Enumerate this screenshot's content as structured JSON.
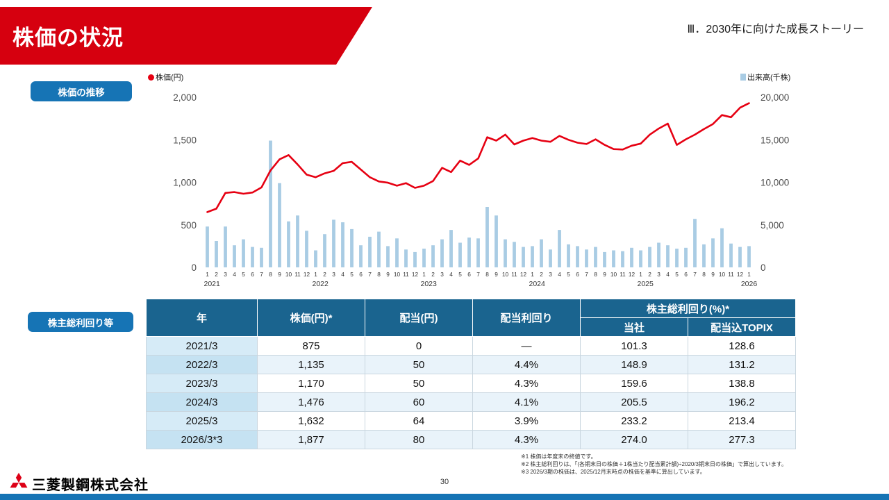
{
  "header": {
    "title": "株価の状況",
    "section": "Ⅲ．2030年に向けた成長ストーリー"
  },
  "chart_section": {
    "label": "株価の推移",
    "legend_price": "株価(円)",
    "legend_volume": "出来高(千株)"
  },
  "chart_data": {
    "type": "line+bar",
    "title": "株価の推移",
    "x_labels": [
      "1",
      "2",
      "3",
      "4",
      "5",
      "6",
      "7",
      "8",
      "9",
      "10",
      "11",
      "12",
      "1",
      "2",
      "3",
      "4",
      "5",
      "6",
      "7",
      "8",
      "9",
      "10",
      "11",
      "12",
      "1",
      "2",
      "3",
      "4",
      "5",
      "6",
      "7",
      "8",
      "9",
      "10",
      "11",
      "12",
      "1",
      "2",
      "3",
      "4",
      "5",
      "6",
      "7",
      "8",
      "9",
      "10",
      "11",
      "12",
      "1",
      "2",
      "3",
      "4",
      "5",
      "6",
      "7",
      "8",
      "9",
      "10",
      "11",
      "12",
      "1"
    ],
    "year_labels": [
      {
        "label": "2021",
        "index": 0
      },
      {
        "label": "2022",
        "index": 12
      },
      {
        "label": "2023",
        "index": 24
      },
      {
        "label": "2024",
        "index": 36
      },
      {
        "label": "2025",
        "index": 48
      },
      {
        "label": "2026",
        "index": 60
      }
    ],
    "left_axis": {
      "title": "株価(円)",
      "min": 0,
      "max": 2000,
      "ticks": [
        {
          "value": 0,
          "label": "0"
        },
        {
          "value": 500,
          "label": "500"
        },
        {
          "value": 1000,
          "label": "1,000"
        },
        {
          "value": 1500,
          "label": "1,500"
        },
        {
          "value": 2000,
          "label": "2,000"
        }
      ]
    },
    "right_axis": {
      "title": "出来高(千株)",
      "min": 0,
      "max": 20000,
      "ticks": [
        {
          "value": 0,
          "label": "0"
        },
        {
          "value": 5000,
          "label": "5,000"
        },
        {
          "value": 10000,
          "label": "10,000"
        },
        {
          "value": 15000,
          "label": "15,000"
        },
        {
          "value": 20000,
          "label": "20,000"
        }
      ]
    },
    "series": [
      {
        "name": "株価(円)",
        "type": "line",
        "axis": "left",
        "color": "#e60012",
        "values": [
          650,
          690,
          875,
          885,
          865,
          880,
          940,
          1140,
          1270,
          1320,
          1210,
          1090,
          1060,
          1105,
          1135,
          1225,
          1240,
          1150,
          1060,
          1010,
          995,
          960,
          990,
          935,
          960,
          1015,
          1170,
          1120,
          1255,
          1205,
          1280,
          1530,
          1490,
          1560,
          1445,
          1490,
          1520,
          1490,
          1476,
          1545,
          1500,
          1465,
          1450,
          1505,
          1440,
          1390,
          1385,
          1430,
          1455,
          1560,
          1632,
          1690,
          1440,
          1505,
          1560,
          1625,
          1685,
          1790,
          1765,
          1877,
          1930
        ]
      },
      {
        "name": "出来高(千株)",
        "type": "bar",
        "axis": "right",
        "color": "#a9cce4",
        "values": [
          4800,
          3100,
          4800,
          2600,
          3300,
          2400,
          2300,
          14900,
          9900,
          5400,
          6100,
          4300,
          2000,
          3900,
          5600,
          5300,
          4500,
          2600,
          3600,
          4200,
          2500,
          3400,
          2100,
          1800,
          2200,
          2600,
          3300,
          4400,
          2900,
          3500,
          3400,
          7100,
          6100,
          3300,
          3000,
          2400,
          2500,
          3300,
          2100,
          4400,
          2700,
          2500,
          2100,
          2400,
          1800,
          2000,
          1900,
          2300,
          2000,
          2400,
          2900,
          2600,
          2200,
          2300,
          5700,
          2700,
          3400,
          4600,
          2800,
          2400,
          2500
        ]
      }
    ]
  },
  "table_section": {
    "label": "株主総利回り等",
    "headers": {
      "year": "年",
      "price": "株価(円)*",
      "dividend": "配当(円)",
      "yield": "配当利回り",
      "tsr_group": "株主総利回り(%)*",
      "tsr_company": "当社",
      "tsr_topix": "配当込TOPIX"
    },
    "rows": [
      [
        "2021/3",
        "875",
        "0",
        "—",
        "101.3",
        "128.6"
      ],
      [
        "2022/3",
        "1,135",
        "50",
        "4.4%",
        "148.9",
        "131.2"
      ],
      [
        "2023/3",
        "1,170",
        "50",
        "4.3%",
        "159.6",
        "138.8"
      ],
      [
        "2024/3",
        "1,476",
        "60",
        "4.1%",
        "205.5",
        "196.2"
      ],
      [
        "2025/3",
        "1,632",
        "64",
        "3.9%",
        "233.2",
        "213.4"
      ],
      [
        "2026/3*3",
        "1,877",
        "80",
        "4.3%",
        "274.0",
        "277.3"
      ]
    ]
  },
  "footnotes": [
    "※1 株価は年度末の終値です。",
    "※2 株主総利回りは、「(各期末日の株価＋1株当たり配当累計額)÷2020/3期末日の株価」で算出しています。",
    "※3 2026/3期の株価は、2025/12月末時点の株価を基準に算出しています。"
  ],
  "footer": {
    "company": "三菱製鋼株式会社",
    "page": "30"
  },
  "colors": {
    "accent_red": "#d6000f",
    "accent_blue": "#1674b5",
    "table_header_blue": "#1a648f",
    "bar_blue": "#a9cce4",
    "line_red": "#e60012"
  }
}
